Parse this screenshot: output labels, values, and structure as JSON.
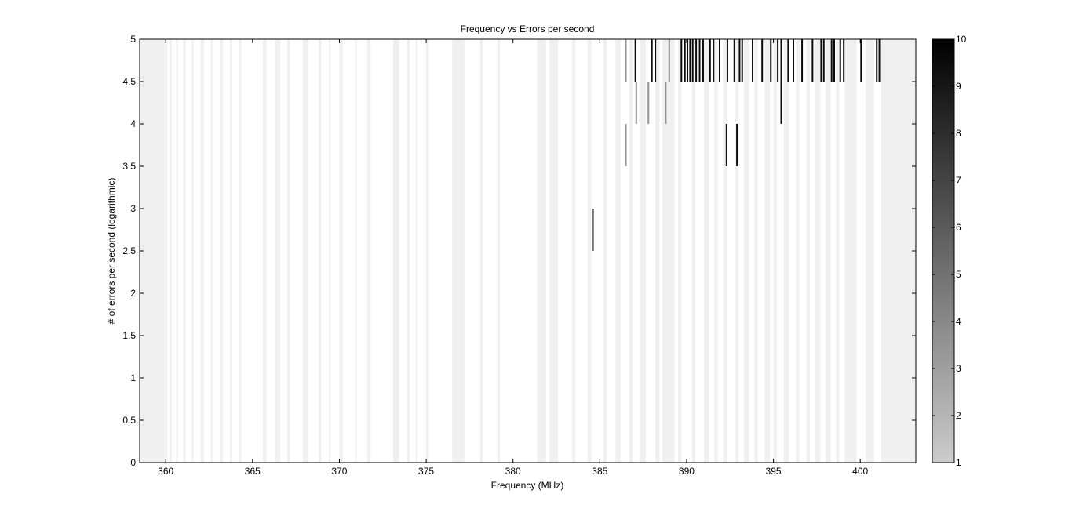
{
  "chart_data": {
    "type": "heatmap",
    "title": "Frequency vs Errors per second",
    "xlabel": "Frequency (MHz)",
    "ylabel": "# of errors per second (logarithmic)",
    "xlim": [
      358.5,
      403.2
    ],
    "ylim": [
      0,
      5
    ],
    "xticks": [
      360,
      365,
      370,
      375,
      380,
      385,
      390,
      395,
      400
    ],
    "yticks": [
      0,
      0.5,
      1,
      1.5,
      2,
      2.5,
      3,
      3.5,
      4,
      4.5,
      5
    ],
    "ytick_labels": [
      "0",
      "0.5",
      "1",
      "1.5",
      "2",
      "2.5",
      "3",
      "3.5",
      "4",
      "4.5",
      "5"
    ],
    "colorbar": {
      "range": [
        1,
        10
      ],
      "ticks": [
        1,
        2,
        3,
        4,
        5,
        6,
        7,
        8,
        9,
        10
      ]
    },
    "background_color": "#f0f0f0",
    "light_cells": [
      {
        "x": 360.2,
        "w": 0.15
      },
      {
        "x": 360.6,
        "w": 0.1
      },
      {
        "x": 361.0,
        "w": 0.15
      },
      {
        "x": 361.5,
        "w": 0.1
      },
      {
        "x": 362.0,
        "w": 0.2
      },
      {
        "x": 362.6,
        "w": 0.1
      },
      {
        "x": 363.1,
        "w": 0.2
      },
      {
        "x": 363.7,
        "w": 0.1
      },
      {
        "x": 364.2,
        "w": 0.15
      },
      {
        "x": 365.6,
        "w": 0.2
      },
      {
        "x": 366.3,
        "w": 0.3
      },
      {
        "x": 367.0,
        "w": 0.15
      },
      {
        "x": 367.9,
        "w": 0.3
      },
      {
        "x": 368.8,
        "w": 0.15
      },
      {
        "x": 369.4,
        "w": 0.1
      },
      {
        "x": 370.0,
        "w": 0.2
      },
      {
        "x": 370.9,
        "w": 0.1
      },
      {
        "x": 371.6,
        "w": 0.2
      },
      {
        "x": 373.1,
        "w": 0.35
      },
      {
        "x": 373.9,
        "w": 0.15
      },
      {
        "x": 374.4,
        "w": 0.1
      },
      {
        "x": 375.0,
        "w": 0.15
      },
      {
        "x": 376.5,
        "w": 0.7
      },
      {
        "x": 378.1,
        "w": 0.15
      },
      {
        "x": 379.1,
        "w": 0.15
      },
      {
        "x": 381.4,
        "w": 0.5
      },
      {
        "x": 382.1,
        "w": 0.5
      },
      {
        "x": 383.4,
        "w": 0.2
      },
      {
        "x": 384.3,
        "w": 0.2
      },
      {
        "x": 385.2,
        "w": 0.2
      },
      {
        "x": 385.9,
        "w": 0.3
      },
      {
        "x": 386.7,
        "w": 0.2
      },
      {
        "x": 387.3,
        "w": 0.35
      },
      {
        "x": 388.2,
        "w": 0.25
      },
      {
        "x": 388.6,
        "w": 0.7
      },
      {
        "x": 389.5,
        "w": 0.2
      },
      {
        "x": 390.3,
        "w": 0.2
      },
      {
        "x": 391.0,
        "w": 0.3
      },
      {
        "x": 391.6,
        "w": 0.2
      },
      {
        "x": 392.1,
        "w": 0.25
      },
      {
        "x": 392.8,
        "w": 0.2
      },
      {
        "x": 393.3,
        "w": 0.3
      },
      {
        "x": 393.9,
        "w": 0.2
      },
      {
        "x": 394.5,
        "w": 0.3
      },
      {
        "x": 395.0,
        "w": 0.2
      },
      {
        "x": 395.6,
        "w": 0.3
      },
      {
        "x": 396.3,
        "w": 0.2
      },
      {
        "x": 396.9,
        "w": 0.2
      },
      {
        "x": 397.4,
        "w": 0.3
      },
      {
        "x": 398.0,
        "w": 0.3
      },
      {
        "x": 398.6,
        "w": 0.2
      },
      {
        "x": 399.1,
        "w": 0.7
      },
      {
        "x": 400.3,
        "w": 0.5
      },
      {
        "x": 401.3,
        "w": 0.5
      }
    ],
    "dark_cells": [
      {
        "x": 386.5,
        "y0": 4.5,
        "y1": 5,
        "v": 3.5
      },
      {
        "x": 387.05,
        "y0": 4.5,
        "y1": 5,
        "v": 9.5
      },
      {
        "x": 388.0,
        "y0": 4.5,
        "y1": 5,
        "v": 9.5
      },
      {
        "x": 388.2,
        "y0": 4.5,
        "y1": 5,
        "v": 9.5
      },
      {
        "x": 389.0,
        "y0": 4.5,
        "y1": 5,
        "v": 3.5
      },
      {
        "x": 389.7,
        "y0": 4.5,
        "y1": 5,
        "v": 9.5
      },
      {
        "x": 389.9,
        "y0": 4.5,
        "y1": 5,
        "v": 9.5
      },
      {
        "x": 390.05,
        "y0": 4.5,
        "y1": 5,
        "v": 9.5
      },
      {
        "x": 390.2,
        "y0": 4.5,
        "y1": 5,
        "v": 9.5
      },
      {
        "x": 390.35,
        "y0": 4.5,
        "y1": 5,
        "v": 9.5
      },
      {
        "x": 390.55,
        "y0": 4.5,
        "y1": 5,
        "v": 9.5
      },
      {
        "x": 390.75,
        "y0": 4.5,
        "y1": 5,
        "v": 9.5
      },
      {
        "x": 390.95,
        "y0": 4.5,
        "y1": 5,
        "v": 9.5
      },
      {
        "x": 391.35,
        "y0": 4.5,
        "y1": 5,
        "v": 9.5
      },
      {
        "x": 391.55,
        "y0": 4.5,
        "y1": 5,
        "v": 9.5
      },
      {
        "x": 391.9,
        "y0": 4.5,
        "y1": 5,
        "v": 9.5
      },
      {
        "x": 392.35,
        "y0": 4.5,
        "y1": 5,
        "v": 9.5
      },
      {
        "x": 392.75,
        "y0": 4.5,
        "y1": 5,
        "v": 9.5
      },
      {
        "x": 393.05,
        "y0": 4.5,
        "y1": 5,
        "v": 9.5
      },
      {
        "x": 393.2,
        "y0": 4.5,
        "y1": 5,
        "v": 9.5
      },
      {
        "x": 393.8,
        "y0": 4.5,
        "y1": 5,
        "v": 9.5
      },
      {
        "x": 394.35,
        "y0": 4.5,
        "y1": 5,
        "v": 9.5
      },
      {
        "x": 394.85,
        "y0": 4.5,
        "y1": 5,
        "v": 9.5
      },
      {
        "x": 395.25,
        "y0": 4.5,
        "y1": 5,
        "v": 9.5
      },
      {
        "x": 395.45,
        "y0": 4.5,
        "y1": 5,
        "v": 9.5
      },
      {
        "x": 395.85,
        "y0": 4.5,
        "y1": 5,
        "v": 9.5
      },
      {
        "x": 396.15,
        "y0": 4.5,
        "y1": 5,
        "v": 9.5
      },
      {
        "x": 396.65,
        "y0": 4.5,
        "y1": 5,
        "v": 9.5
      },
      {
        "x": 397.25,
        "y0": 4.5,
        "y1": 5,
        "v": 9.5
      },
      {
        "x": 397.75,
        "y0": 4.5,
        "y1": 5,
        "v": 9.5
      },
      {
        "x": 397.9,
        "y0": 4.5,
        "y1": 5,
        "v": 9.5
      },
      {
        "x": 398.35,
        "y0": 4.5,
        "y1": 5,
        "v": 9.5
      },
      {
        "x": 398.5,
        "y0": 4.5,
        "y1": 5,
        "v": 9.5
      },
      {
        "x": 398.85,
        "y0": 4.5,
        "y1": 5,
        "v": 9.5
      },
      {
        "x": 399.05,
        "y0": 4.5,
        "y1": 5,
        "v": 9.5
      },
      {
        "x": 400.05,
        "y0": 4.5,
        "y1": 5,
        "v": 9.5
      },
      {
        "x": 400.95,
        "y0": 4.5,
        "y1": 5,
        "v": 9.5
      },
      {
        "x": 401.1,
        "y0": 4.5,
        "y1": 5,
        "v": 9.5
      },
      {
        "x": 387.1,
        "y0": 4,
        "y1": 4.5,
        "v": 3.5
      },
      {
        "x": 387.8,
        "y0": 4,
        "y1": 4.5,
        "v": 3.5
      },
      {
        "x": 388.8,
        "y0": 4,
        "y1": 4.5,
        "v": 3.5
      },
      {
        "x": 395.45,
        "y0": 4,
        "y1": 4.5,
        "v": 9.5
      },
      {
        "x": 386.5,
        "y0": 3.5,
        "y1": 4,
        "v": 3.5
      },
      {
        "x": 392.3,
        "y0": 3.5,
        "y1": 4,
        "v": 9.5
      },
      {
        "x": 392.9,
        "y0": 3.5,
        "y1": 4,
        "v": 9.5
      },
      {
        "x": 384.6,
        "y0": 2.5,
        "y1": 3,
        "v": 9.5
      }
    ],
    "grid": false
  }
}
